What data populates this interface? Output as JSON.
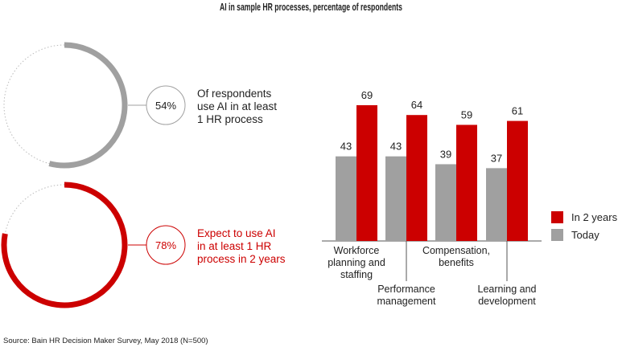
{
  "colors": {
    "red": "#cc0000",
    "gray": "#a0a0a0",
    "text": "#222222",
    "axis": "#555555"
  },
  "stats": [
    {
      "value": 54,
      "label": "54%",
      "lines": [
        "Of respondents",
        "use AI in at least",
        "1 HR process"
      ],
      "color": "#a0a0a0",
      "text_color": "#222222"
    },
    {
      "value": 78,
      "label": "78%",
      "lines": [
        "Expect to use AI",
        "in at least 1 HR",
        "process in 2 years"
      ],
      "color": "#cc0000",
      "text_color": "#cc0000"
    }
  ],
  "chart_data": {
    "type": "bar",
    "title": "AI in sample HR processes, percentage of respondents",
    "categories": [
      [
        "Workforce",
        "planning and",
        "staffing"
      ],
      [
        "Performance",
        "management"
      ],
      [
        "Compensation,",
        "benefits"
      ],
      [
        "Learning and",
        "development"
      ]
    ],
    "series": [
      {
        "name": "Today",
        "color": "#a0a0a0",
        "values": [
          43,
          43,
          39,
          37
        ]
      },
      {
        "name": "In 2 years",
        "color": "#cc0000",
        "values": [
          69,
          64,
          59,
          61
        ]
      }
    ],
    "ylim": [
      0,
      75
    ],
    "grid": false,
    "legend": "right",
    "data_labels": true
  },
  "source": "Source: Bain HR Decision Maker Survey, May 2018 (N=500)"
}
